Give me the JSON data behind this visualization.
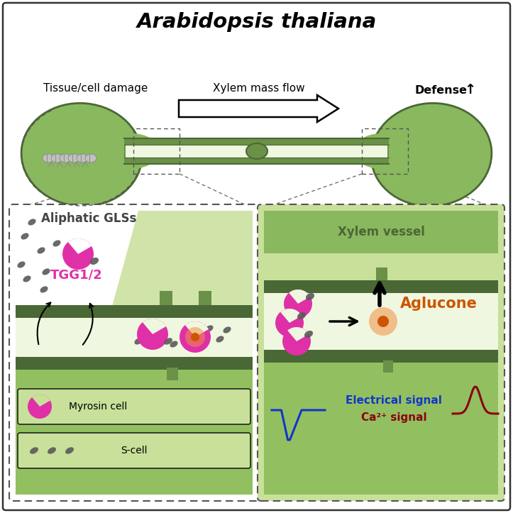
{
  "bg": "#ffffff",
  "c_dark_green": "#4a6835",
  "c_mid_green": "#6b9048",
  "c_light_green": "#8ab85e",
  "c_pale_green": "#c8e09a",
  "c_very_pale": "#dff0b8",
  "c_xylem_lumen": "#f0f7e0",
  "c_bottom_green": "#92c060",
  "c_header_green": "#8ab85e",
  "c_magenta": "#e030a8",
  "c_gray_bean": "#5a5a5a",
  "c_orange": "#cc5500",
  "c_orange_glow": "#f09040",
  "c_blue": "#1535c8",
  "c_dark_red": "#8b0010",
  "c_text_gray": "#444444",
  "c_white": "#ffffff",
  "c_black": "#000000",
  "c_connector": "#666666",
  "title": "Arabidopsis thaliana",
  "lbl_tissue": "Tissue/cell damage",
  "lbl_flow": "Xylem mass flow",
  "lbl_defense": "Defense",
  "lbl_aliphatic": "Aliphatic GLSs",
  "lbl_tgg": "TGG1/2",
  "lbl_myrosin": "Myrosin cell",
  "lbl_scell": "S-cell",
  "lbl_xylem": "Xylem vessel",
  "lbl_aglucone": "Aglucone",
  "lbl_elec": "Electrical signal",
  "lbl_ca2": "Ca²⁺ signal"
}
